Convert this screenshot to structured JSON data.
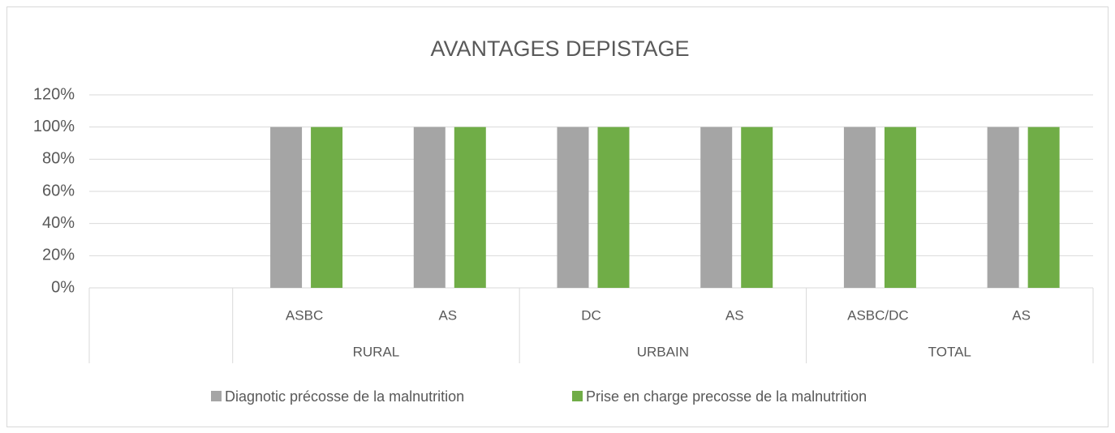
{
  "chart_data": {
    "type": "bar",
    "title": "AVANTAGES DEPISTAGE",
    "categories": [
      null,
      "ASBC",
      "AS",
      "DC",
      "AS",
      "ASBC/DC",
      "AS"
    ],
    "category_groups": [
      null,
      "RURAL",
      "RURAL",
      "URBAIN",
      "URBAIN",
      "TOTAL",
      "TOTAL"
    ],
    "series": [
      {
        "name": "Diagnotic précosse de la malnutrition",
        "color": "#a5a5a5",
        "values": [
          null,
          100,
          100,
          100,
          100,
          100,
          100
        ]
      },
      {
        "name": "Prise en charge precosse de la malnutrition",
        "color": "#70ad47",
        "values": [
          null,
          100,
          100,
          100,
          100,
          100,
          100
        ]
      }
    ],
    "ylim": [
      0,
      120
    ],
    "yticks": [
      {
        "value": 0,
        "label": "0%"
      },
      {
        "value": 20,
        "label": "20%"
      },
      {
        "value": 40,
        "label": "40%"
      },
      {
        "value": 60,
        "label": "60%"
      },
      {
        "value": 80,
        "label": "80%"
      },
      {
        "value": 100,
        "label": "100%"
      },
      {
        "value": 120,
        "label": "120%"
      }
    ],
    "grid": true,
    "legend": "bottom"
  }
}
